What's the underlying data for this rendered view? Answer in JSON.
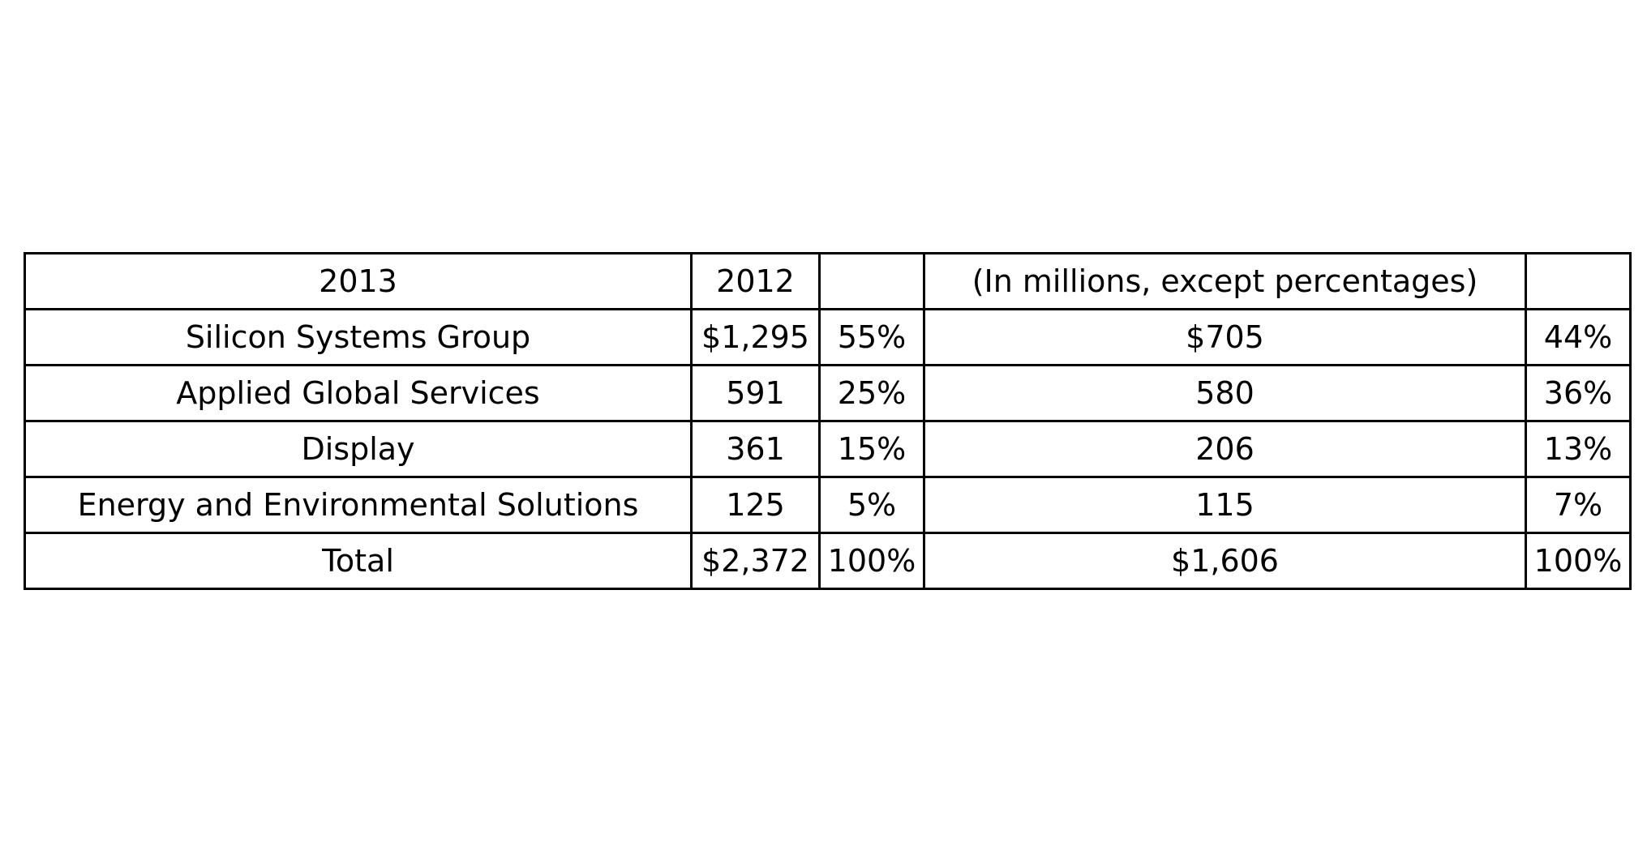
{
  "chart_data": {
    "type": "table",
    "header": [
      "2013",
      "2012",
      "",
      "(In millions, except percentages)",
      ""
    ],
    "rows": [
      [
        "Silicon Systems Group",
        "$1,295",
        "55%",
        "$705",
        "44%"
      ],
      [
        "Applied Global Services",
        "591",
        "25%",
        "580",
        "36%"
      ],
      [
        "Display",
        "361",
        "15%",
        "206",
        "13%"
      ],
      [
        "Energy and Environmental Solutions",
        "125",
        "5%",
        "115",
        "7%"
      ],
      [
        "Total",
        "$2,372",
        "100%",
        "$1,606",
        "100%"
      ]
    ]
  },
  "colors": {
    "border": "#000000",
    "text": "#000000",
    "background": "#ffffff"
  }
}
